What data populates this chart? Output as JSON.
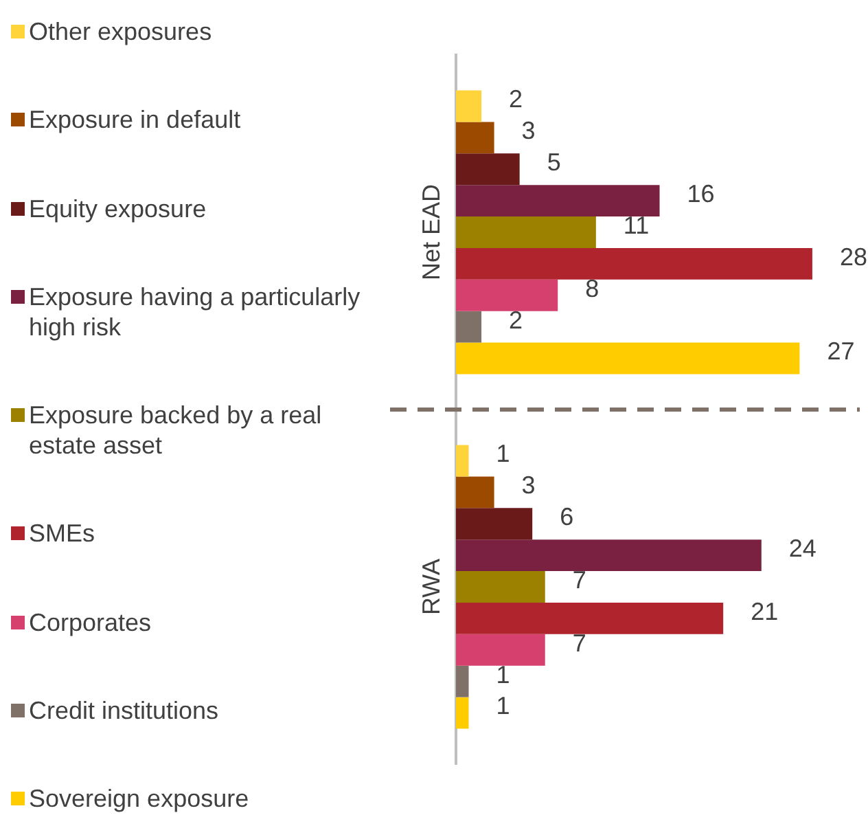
{
  "chart_data": {
    "type": "bar",
    "orientation": "horizontal",
    "categories": [
      "Net EAD",
      "RWA"
    ],
    "series": [
      {
        "name": "Other exposures",
        "color": "#ffd43b",
        "values": [
          2,
          1
        ]
      },
      {
        "name": "Exposure in default",
        "color": "#9c4a00",
        "values": [
          3,
          3
        ]
      },
      {
        "name": "Equity exposure",
        "color": "#6b1a1a",
        "values": [
          5,
          6
        ]
      },
      {
        "name": "Exposure having a particularly high risk",
        "color": "#7a2040",
        "values": [
          16,
          24
        ]
      },
      {
        "name": "Exposure backed by a real estate asset",
        "color": "#9c8000",
        "values": [
          11,
          7
        ]
      },
      {
        "name": "SMEs",
        "color": "#b0242d",
        "values": [
          28,
          21
        ]
      },
      {
        "name": "Corporates",
        "color": "#d6406e",
        "values": [
          8,
          7
        ]
      },
      {
        "name": "Credit institutions",
        "color": "#7f7168",
        "values": [
          2,
          1
        ]
      },
      {
        "name": "Sovereign exposure",
        "color": "#ffcc00",
        "values": [
          27,
          1
        ]
      }
    ],
    "data_labels": true,
    "legend": "left",
    "tick_labels": "y"
  }
}
